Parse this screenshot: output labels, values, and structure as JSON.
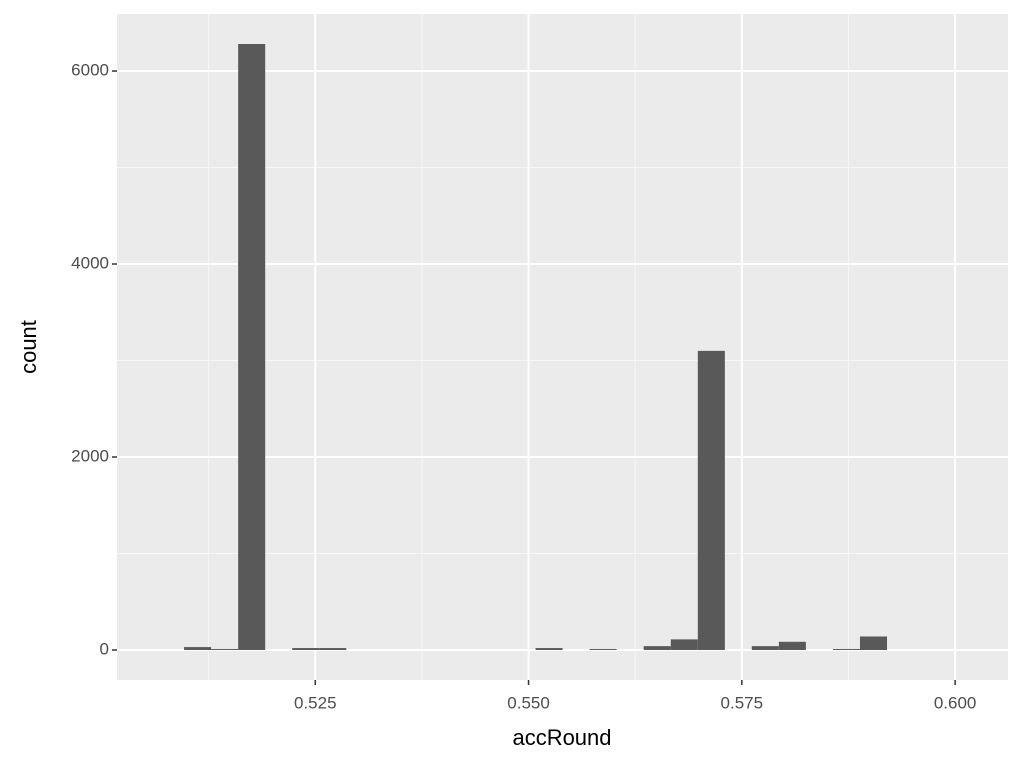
{
  "chart_data": {
    "type": "histogram",
    "x_label": "accRound",
    "y_label": "count",
    "bins": [
      0.50962,
      0.51279,
      0.51596,
      0.51913,
      0.5223,
      0.52547,
      0.52864,
      0.53181,
      0.53498,
      0.53815,
      0.54131,
      0.54448,
      0.54765,
      0.55082,
      0.55399,
      0.55716,
      0.56033,
      0.5635,
      0.56667,
      0.56984,
      0.57301,
      0.57617,
      0.57934,
      0.58251,
      0.58568,
      0.58885,
      0.59202
    ],
    "values": [
      30,
      10,
      6280,
      0,
      20,
      20,
      0,
      0,
      0,
      0,
      0,
      0,
      0,
      20,
      0,
      10,
      0,
      40,
      110,
      3100,
      0,
      40,
      85,
      0,
      10,
      140
    ],
    "color": "#595959",
    "xlim": [
      0.50176,
      0.6062
    ],
    "ylim": [
      -311,
      6591
    ],
    "xticks": [
      {
        "value": 0.525,
        "label": "0.525"
      },
      {
        "value": 0.55,
        "label": "0.550"
      },
      {
        "value": 0.575,
        "label": "0.575"
      },
      {
        "value": 0.6,
        "label": "0.600"
      }
    ],
    "yticks": [
      0,
      2000,
      4000,
      6000
    ],
    "grid": true
  }
}
